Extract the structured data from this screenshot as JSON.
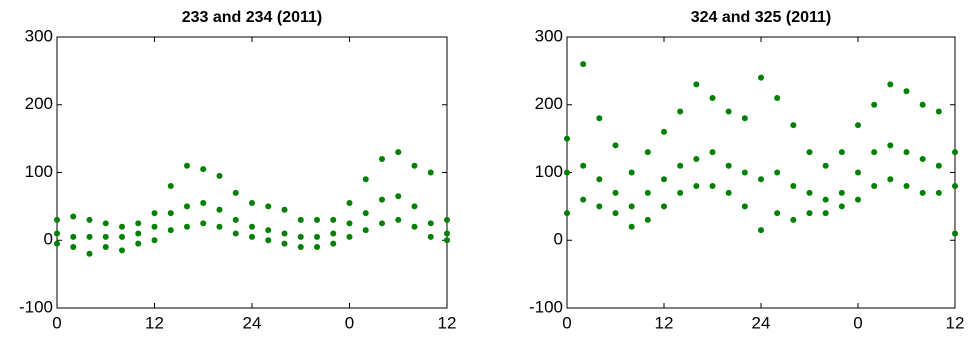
{
  "chart_data": [
    {
      "type": "scatter",
      "title": "233 and 234 (2011)",
      "color": "#008000",
      "xlim": [
        0,
        48
      ],
      "xticks": [
        0,
        12,
        24,
        {
          "value": 36,
          "label": "0"
        },
        {
          "value": 48,
          "label": "12"
        }
      ],
      "ylim": [
        -100,
        300
      ],
      "yticks": [
        -100,
        0,
        100,
        200,
        300
      ],
      "x": [
        0,
        0,
        0,
        2,
        2,
        2,
        4,
        4,
        4,
        6,
        6,
        6,
        8,
        8,
        8,
        10,
        10,
        10,
        12,
        12,
        12,
        14,
        14,
        14,
        16,
        16,
        16,
        18,
        18,
        18,
        20,
        20,
        20,
        22,
        22,
        22,
        24,
        24,
        24,
        26,
        26,
        26,
        28,
        28,
        28,
        30,
        30,
        30,
        32,
        32,
        32,
        34,
        34,
        34,
        36,
        36,
        36,
        38,
        38,
        38,
        40,
        40,
        40,
        42,
        42,
        42,
        44,
        44,
        44,
        46,
        46,
        46,
        48,
        48,
        48
      ],
      "y": [
        -5,
        10,
        30,
        -10,
        5,
        35,
        -20,
        5,
        30,
        -10,
        5,
        25,
        -15,
        5,
        20,
        -5,
        10,
        25,
        0,
        20,
        40,
        15,
        40,
        80,
        20,
        50,
        110,
        25,
        55,
        105,
        20,
        45,
        95,
        10,
        30,
        70,
        5,
        20,
        55,
        0,
        15,
        50,
        -5,
        10,
        45,
        -10,
        5,
        30,
        -10,
        5,
        30,
        -5,
        10,
        30,
        5,
        25,
        55,
        15,
        40,
        90,
        25,
        60,
        120,
        30,
        65,
        130,
        20,
        50,
        110,
        5,
        25,
        100,
        0,
        10,
        30
      ]
    },
    {
      "type": "scatter",
      "title": "324 and 325 (2011)",
      "color": "#008000",
      "xlim": [
        0,
        48
      ],
      "xticks": [
        0,
        12,
        24,
        {
          "value": 36,
          "label": "0"
        },
        {
          "value": 48,
          "label": "12"
        }
      ],
      "ylim": [
        -100,
        300
      ],
      "yticks": [
        -100,
        0,
        100,
        200,
        300
      ],
      "x": [
        0,
        0,
        0,
        2,
        2,
        2,
        4,
        4,
        4,
        6,
        6,
        6,
        8,
        8,
        8,
        10,
        10,
        10,
        12,
        12,
        12,
        14,
        14,
        14,
        16,
        16,
        16,
        18,
        18,
        18,
        20,
        20,
        20,
        22,
        22,
        22,
        24,
        24,
        24,
        26,
        26,
        26,
        28,
        28,
        28,
        30,
        30,
        30,
        32,
        32,
        32,
        34,
        34,
        34,
        36,
        36,
        36,
        38,
        38,
        38,
        40,
        40,
        40,
        42,
        42,
        42,
        44,
        44,
        44,
        46,
        46,
        46,
        48,
        48,
        48
      ],
      "y": [
        40,
        100,
        150,
        60,
        110,
        260,
        50,
        90,
        180,
        40,
        70,
        140,
        20,
        50,
        100,
        30,
        70,
        130,
        50,
        90,
        160,
        70,
        110,
        190,
        80,
        120,
        230,
        80,
        130,
        210,
        70,
        110,
        190,
        50,
        100,
        180,
        15,
        90,
        240,
        40,
        100,
        210,
        30,
        80,
        170,
        40,
        70,
        130,
        40,
        60,
        110,
        50,
        70,
        130,
        60,
        100,
        170,
        80,
        130,
        200,
        90,
        140,
        230,
        80,
        130,
        220,
        70,
        120,
        200,
        70,
        110,
        190,
        10,
        80,
        130
      ]
    }
  ]
}
